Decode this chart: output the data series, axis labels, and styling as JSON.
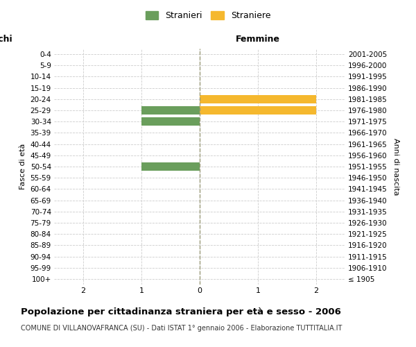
{
  "age_groups": [
    "100+",
    "95-99",
    "90-94",
    "85-89",
    "80-84",
    "75-79",
    "70-74",
    "65-69",
    "60-64",
    "55-59",
    "50-54",
    "45-49",
    "40-44",
    "35-39",
    "30-34",
    "25-29",
    "20-24",
    "15-19",
    "10-14",
    "5-9",
    "0-4"
  ],
  "birth_years": [
    "≤ 1905",
    "1906-1910",
    "1911-1915",
    "1916-1920",
    "1921-1925",
    "1926-1930",
    "1931-1935",
    "1936-1940",
    "1941-1945",
    "1946-1950",
    "1951-1955",
    "1956-1960",
    "1961-1965",
    "1966-1970",
    "1971-1975",
    "1976-1980",
    "1981-1985",
    "1986-1990",
    "1991-1995",
    "1996-2000",
    "2001-2005"
  ],
  "males": [
    0,
    0,
    0,
    0,
    0,
    0,
    0,
    0,
    0,
    0,
    1,
    0,
    0,
    0,
    1,
    1,
    0,
    0,
    0,
    0,
    0
  ],
  "females": [
    0,
    0,
    0,
    0,
    0,
    0,
    0,
    0,
    0,
    0,
    0,
    0,
    0,
    0,
    0,
    2,
    2,
    0,
    0,
    0,
    0
  ],
  "xlim": 2.5,
  "male_color": "#6a9e5c",
  "female_color": "#f5b82e",
  "male_label": "Stranieri",
  "female_label": "Straniere",
  "right_title": "Femmine",
  "left_ylabel": "Fasce di età",
  "right_ylabel": "Anni di nascita",
  "title": "Popolazione per cittadinanza straniera per età e sesso - 2006",
  "subtitle": "COMUNE DI VILLANOVAFRANCA (SU) - Dati ISTAT 1° gennaio 2006 - Elaborazione TUTTITALIA.IT",
  "bg_color": "#ffffff",
  "grid_color": "#cccccc",
  "bar_height": 0.75
}
